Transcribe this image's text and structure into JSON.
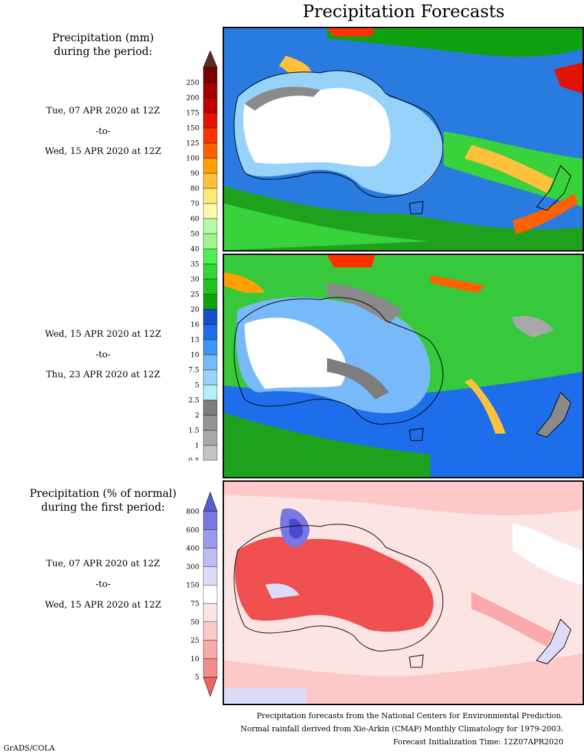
{
  "title": "Precipitation Forecasts",
  "legend_top": {
    "heading_line1": "Precipitation (mm)",
    "heading_line2": "during the period:",
    "levels": [
      "0.5",
      "1",
      "1.5",
      "2",
      "2.5",
      "5",
      "7.5",
      "10",
      "13",
      "16",
      "20",
      "25",
      "30",
      "35",
      "40",
      "50",
      "60",
      "70",
      "80",
      "90",
      "100",
      "125",
      "150",
      "175",
      "200",
      "250"
    ],
    "colors": [
      "#c4c4c4",
      "#a8a8a8",
      "#949494",
      "#7d7d7d",
      "#b4f0fa",
      "#96d2fa",
      "#78b9fa",
      "#3c96f5",
      "#1e6eeb",
      "#1450c8",
      "#0fa00f",
      "#1ec31e",
      "#37d23c",
      "#50f050",
      "#a0f58c",
      "#b4faaa",
      "#fffaaa",
      "#ffe878",
      "#ffc03c",
      "#ffa000",
      "#ff6000",
      "#ff3200",
      "#e11400",
      "#c00000",
      "#a50000",
      "#7a0000"
    ],
    "top_cap_color": "#5a2c25"
  },
  "legend_bottom": {
    "heading_line1": "Precipitation (% of normal)",
    "heading_line2": "during the first period:",
    "levels": [
      "5",
      "10",
      "25",
      "50",
      "75",
      "150",
      "300",
      "400",
      "600",
      "800"
    ],
    "colors": [
      "#f06464",
      "#f58c8c",
      "#faaaaa",
      "#fcc8c8",
      "#fde4e4",
      "#ffffff",
      "#dcdcfa",
      "#bebef5",
      "#9a9aec",
      "#7878e0",
      "#5a5ad2"
    ]
  },
  "periods": [
    {
      "start": "Tue, 07 APR 2020 at 12Z",
      "sep": "-to-",
      "end": "Wed, 15 APR 2020 at 12Z"
    },
    {
      "start": "Wed, 15 APR 2020 at 12Z",
      "sep": "-to-",
      "end": "Thu, 23 APR 2020 at 12Z"
    },
    {
      "start": "Tue, 07 APR 2020 at 12Z",
      "sep": "-to-",
      "end": "Wed, 15 APR 2020 at 12Z"
    }
  ],
  "credits": {
    "line1": "Precipitation forecasts from the National Centers for Environmental Prediction.",
    "line2": "Normal rainfall derived from Xie-Arkin (CMAP) Monthly Climatology for 1979-2003.",
    "line3": "Forecast Initialization Time: 12Z07APR2020"
  },
  "software": "GrADS/COLA"
}
